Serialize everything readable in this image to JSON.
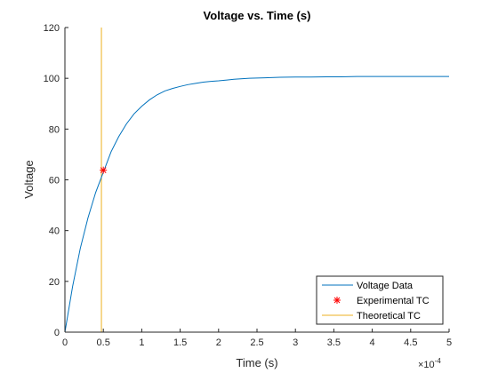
{
  "chart_data": {
    "type": "line",
    "title": "Voltage vs. Time (s)",
    "xlabel": "Time (s)",
    "ylabel": "Voltage",
    "x_multiplier_label": "×10",
    "x_multiplier_exponent": "-4",
    "xlim": [
      0,
      0.0005
    ],
    "ylim": [
      0,
      120
    ],
    "x_ticks": [
      0,
      5e-05,
      0.0001,
      0.00015,
      0.0002,
      0.00025,
      0.0003,
      0.00035,
      0.0004,
      0.00045,
      0.0005
    ],
    "x_tick_labels": [
      "0",
      "0.5",
      "1",
      "1.5",
      "2",
      "2.5",
      "3",
      "3.5",
      "4",
      "4.5",
      "5"
    ],
    "y_ticks": [
      0,
      20,
      40,
      60,
      80,
      100,
      120
    ],
    "y_tick_labels": [
      "0",
      "20",
      "40",
      "60",
      "80",
      "100",
      "120"
    ],
    "grid": false,
    "legend_position": "bottom-right",
    "colors": {
      "voltage": "#0072BD",
      "experimental": "#FF0000",
      "theoretical": "#EDB120",
      "axes": "#262626"
    },
    "series": [
      {
        "name": "Voltage Data",
        "kind": "line",
        "x": [
          0,
          1e-05,
          2e-05,
          3e-05,
          4e-05,
          5e-05,
          6e-05,
          7e-05,
          8e-05,
          9e-05,
          0.0001,
          0.00011,
          0.00012,
          0.00013,
          0.00014,
          0.00015,
          0.00016,
          0.00017,
          0.00018,
          0.00019,
          0.0002,
          0.00022,
          0.00024,
          0.00026,
          0.00028,
          0.0003,
          0.00032,
          0.00034,
          0.00036,
          0.00038,
          0.0004,
          0.00042,
          0.00044,
          0.00046,
          0.00048,
          0.0005
        ],
        "y": [
          0,
          18,
          33,
          45,
          55,
          63,
          71,
          77,
          82,
          86,
          89,
          91.5,
          93.5,
          95,
          96,
          96.8,
          97.5,
          98,
          98.5,
          98.8,
          99,
          99.6,
          100,
          100.2,
          100.4,
          100.5,
          100.5,
          100.6,
          100.6,
          100.7,
          100.7,
          100.7,
          100.7,
          100.7,
          100.7,
          100.7
        ]
      },
      {
        "name": "Experimental TC",
        "kind": "marker",
        "x": [
          5e-05
        ],
        "y": [
          63.8
        ]
      },
      {
        "name": "Theoretical TC",
        "kind": "vline",
        "x": [
          4.75e-05
        ]
      }
    ]
  }
}
